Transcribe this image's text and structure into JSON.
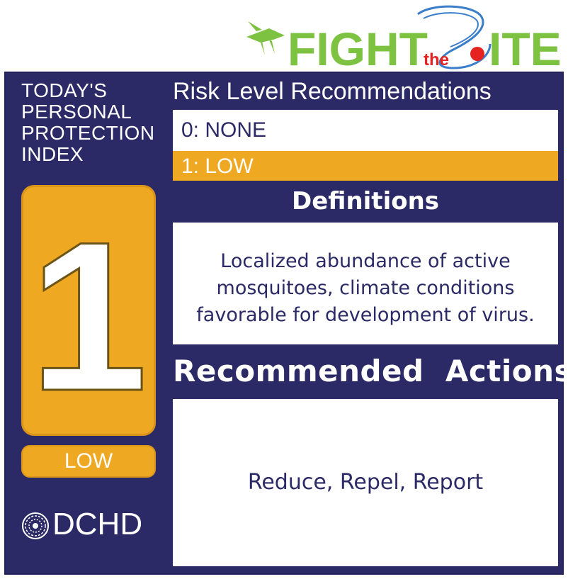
{
  "logo": {
    "word_fight": "FIGHT",
    "word_the": "the",
    "word_bite": "ITE",
    "colors": {
      "green": "#7ec242",
      "red": "#e52421",
      "blue": "#3a7dc9"
    },
    "icon": "mosquito-icon"
  },
  "index": {
    "title_lines": [
      "TODAY'S",
      "PERSONAL",
      "PROTECTION",
      "INDEX"
    ],
    "level_number": "1",
    "level_name": "LOW",
    "organization": "DCHD",
    "org_icon": "globe-icon"
  },
  "recommendations": {
    "heading": "Risk Level Recommendations",
    "levels": [
      {
        "label": "0: NONE",
        "active": false
      },
      {
        "label": "1: LOW",
        "active": true
      }
    ],
    "definitions_heading": "Definitions",
    "definition_lines": [
      "Localized abundance of active",
      "mosquitoes, climate conditions",
      "favorable for development of virus."
    ],
    "actions_heading": "Recommended  Actions",
    "actions_text": "Reduce, Repel, Report"
  },
  "colors": {
    "navy": "#2b2a66",
    "orange": "#efa822",
    "white": "#ffffff"
  }
}
